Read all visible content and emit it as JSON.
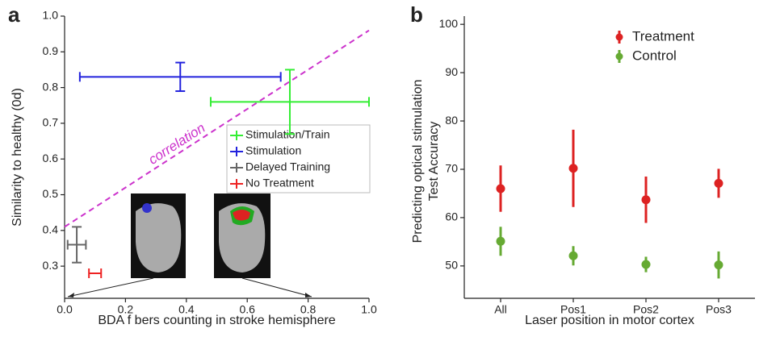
{
  "chart_data": [
    {
      "type": "scatter",
      "panel_label": "a",
      "xlabel": "BDA f bers counting in stroke hemisphere",
      "ylabel": "Similarity to healthy  (0d)",
      "xlim": [
        0,
        1
      ],
      "ylim": [
        0.21,
        1.0
      ],
      "xticks": [
        {
          "value": 0,
          "label": "0.0"
        },
        0.2,
        0.4,
        0.6,
        0.8,
        {
          "value": 1,
          "label": "1.0"
        }
      ],
      "yticks": [
        0.3,
        0.4,
        0.5,
        0.6,
        0.7,
        0.8,
        0.9,
        {
          "value": 1,
          "label": "1.0"
        }
      ],
      "series": [
        {
          "name": "Stimulation/Train",
          "color": "#33ee33",
          "x": [
            0.74
          ],
          "y": [
            0.76
          ],
          "xerr": [
            0.26
          ],
          "yerr": [
            0.09
          ]
        },
        {
          "name": "Stimulation",
          "color": "#2222dd",
          "x": [
            0.38
          ],
          "y": [
            0.83
          ],
          "xerr": [
            0.33
          ],
          "yerr": [
            0.04
          ]
        },
        {
          "name": "Delayed Training",
          "color": "#666666",
          "x": [
            0.04
          ],
          "y": [
            0.36
          ],
          "xerr": [
            0.03
          ],
          "yerr": [
            0.05
          ]
        },
        {
          "name": "No Treatment",
          "color": "#ee2222",
          "x": [
            0.1
          ],
          "y": [
            0.28
          ],
          "xerr": [
            0.02
          ],
          "yerr": [
            0
          ]
        }
      ],
      "fit": {
        "label": "correlation",
        "color": "#cc33cc",
        "x": [
          0,
          1
        ],
        "y": [
          0.41,
          0.96
        ]
      }
    },
    {
      "type": "errorbar",
      "panel_label": "b",
      "xlabel": "Laser position in motor cortex",
      "ylabel": [
        "Predicting optical stimulation",
        "Test Accuracy"
      ],
      "categories": [
        "All",
        "Pos1",
        "Pos2",
        "Pos3"
      ],
      "ylim": [
        43.3,
        101.7
      ],
      "yticks": [
        50,
        60,
        70,
        80,
        90,
        100
      ],
      "series": [
        {
          "name": "Treatment",
          "color": "#dd2222",
          "values": [
            66,
            70.2,
            63.7,
            67.1
          ],
          "errors": [
            4.8,
            8,
            4.8,
            3
          ]
        },
        {
          "name": "Control",
          "color": "#66aa33",
          "values": [
            55.1,
            52.1,
            50.3,
            50.2
          ],
          "errors": [
            3,
            2,
            1.6,
            2.8
          ]
        }
      ]
    }
  ]
}
